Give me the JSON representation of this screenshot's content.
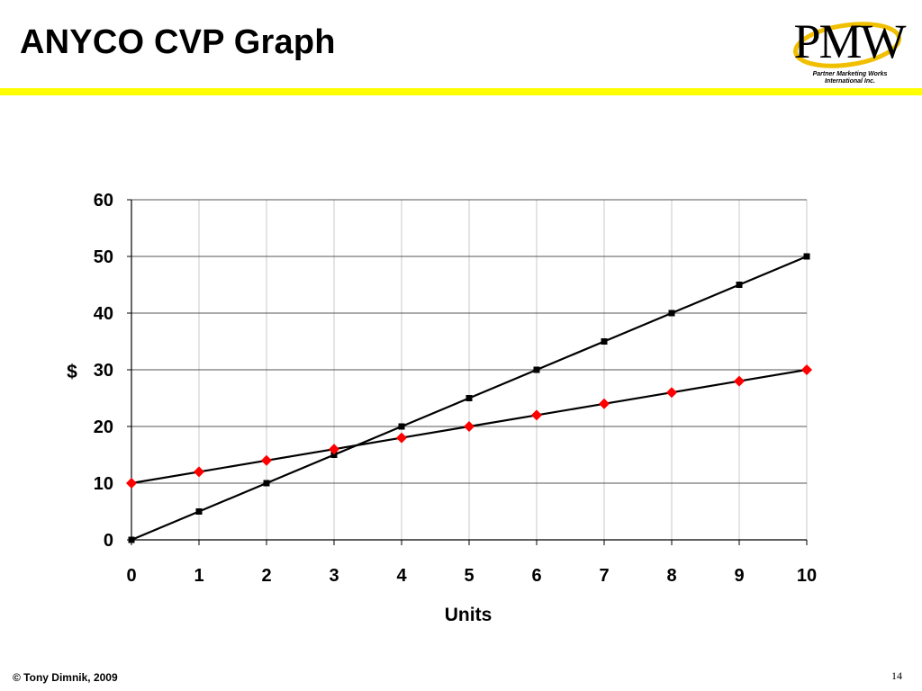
{
  "slide": {
    "title": "ANYCO CVP Graph",
    "copyright": "© Tony Dimnik, 2009",
    "page_number": "14"
  },
  "logo": {
    "mark": "PMW",
    "caption_line1": "Partner Marketing Works",
    "caption_line2": "International Inc.",
    "ring_color": "#f0c000"
  },
  "chart_data": {
    "type": "line",
    "xlabel": "Units",
    "ylabel": "$",
    "xlim": [
      0,
      10
    ],
    "ylim": [
      0,
      60
    ],
    "x_ticks": [
      0,
      1,
      2,
      3,
      4,
      5,
      6,
      7,
      8,
      9,
      10
    ],
    "y_ticks": [
      0,
      10,
      20,
      30,
      40,
      50,
      60
    ],
    "grid": true,
    "legend": "none",
    "series": [
      {
        "marker": "square",
        "line_color": "#000000",
        "marker_color": "#000000",
        "x": [
          0,
          1,
          2,
          3,
          4,
          5,
          6,
          7,
          8,
          9,
          10
        ],
        "values": [
          0,
          5,
          10,
          15,
          20,
          25,
          30,
          35,
          40,
          45,
          50
        ]
      },
      {
        "marker": "diamond",
        "line_color": "#000000",
        "marker_color": "#ff0000",
        "x": [
          0,
          1,
          2,
          3,
          4,
          5,
          6,
          7,
          8,
          9,
          10
        ],
        "values": [
          10,
          12,
          14,
          16,
          18,
          20,
          22,
          24,
          26,
          28,
          30
        ]
      }
    ]
  }
}
